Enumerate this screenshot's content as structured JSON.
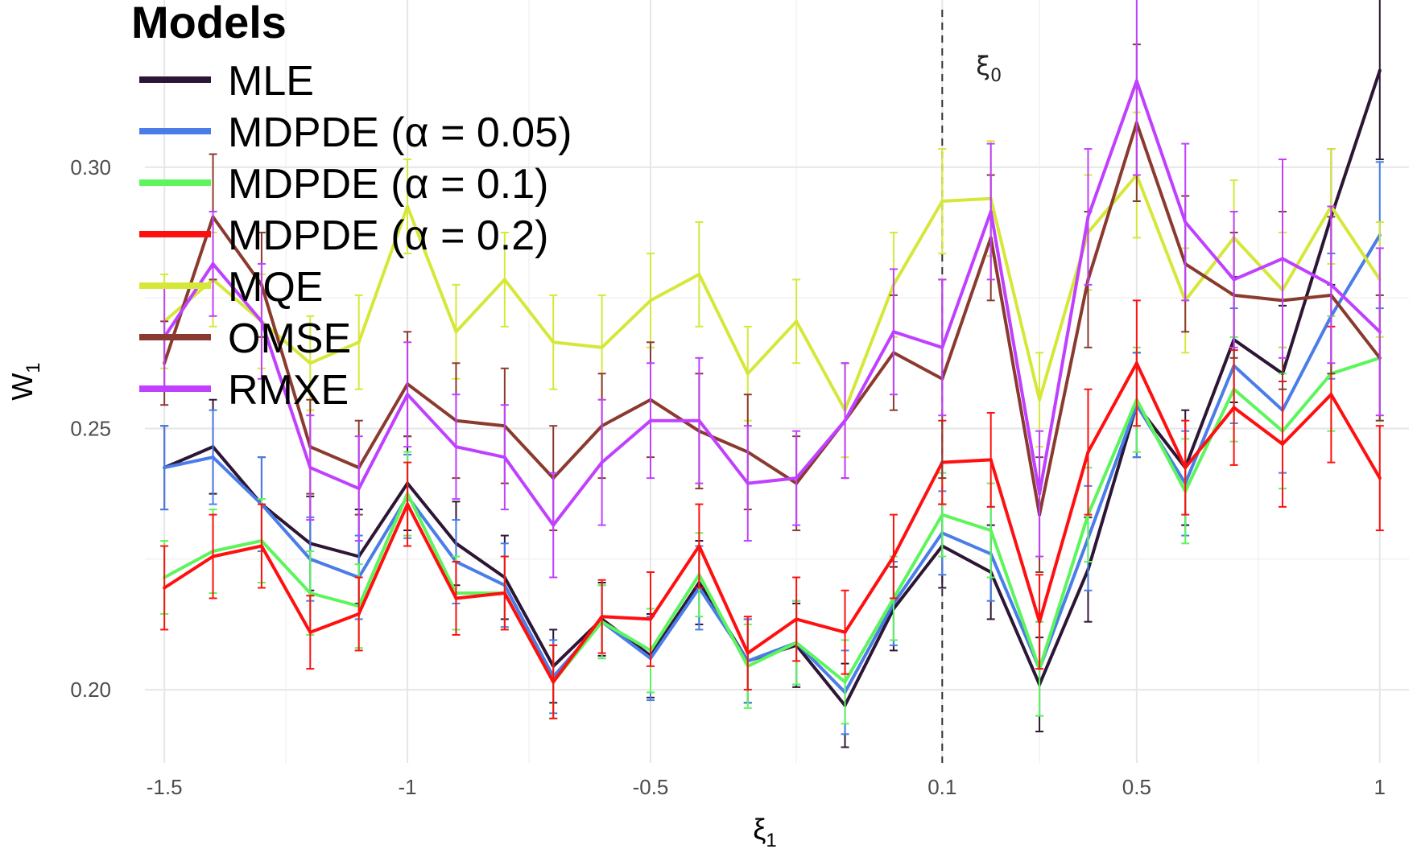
{
  "chart_data": {
    "type": "line",
    "xlabel": "ξ",
    "xlabel_sub": "1",
    "ylabel": "W",
    "ylabel_sub": "1",
    "ylim": [
      0.186,
      0.332
    ],
    "y_ticks": [
      0.2,
      0.25,
      0.3
    ],
    "y_tick_labels": [
      "0.20",
      "0.25",
      "0.30"
    ],
    "x_tick_labels": [
      "-1.5",
      "-1",
      "-0.5",
      "0.1",
      "0.5",
      "1"
    ],
    "x_tick_positions": [
      1,
      6,
      11,
      17,
      21,
      26
    ],
    "x": [
      1,
      2,
      3,
      4,
      5,
      6,
      7,
      8,
      9,
      10,
      11,
      12,
      13,
      14,
      15,
      16,
      17,
      18,
      19,
      20,
      21,
      22,
      23,
      24,
      25,
      26
    ],
    "grid": true,
    "legend": {
      "title": "Models",
      "position": "top-left"
    },
    "annotation": {
      "text": "ξ",
      "sub": "0",
      "vline_x": 17
    },
    "series": [
      {
        "name": "MLE",
        "color": "#2d1635",
        "values": [
          0.2425,
          0.2465,
          0.2355,
          0.228,
          0.2255,
          0.2395,
          0.228,
          0.2215,
          0.2045,
          0.2135,
          0.2065,
          0.2205,
          0.2055,
          0.2085,
          0.197,
          0.2155,
          0.2275,
          0.2225,
          0.201,
          0.223,
          0.2545,
          0.2425,
          0.267,
          0.2605,
          0.2905,
          0.3185
        ],
        "err": [
          0.008,
          0.009,
          0.009,
          0.009,
          0.009,
          0.009,
          0.008,
          0.008,
          0.007,
          0.007,
          0.008,
          0.008,
          0.008,
          0.008,
          0.008,
          0.008,
          0.008,
          0.009,
          0.009,
          0.01,
          0.01,
          0.011,
          0.012,
          0.013,
          0.013,
          0.017
        ]
      },
      {
        "name": "MDPDE (α = 0.05)",
        "color": "#4a7de8",
        "values": [
          0.2425,
          0.2445,
          0.2355,
          0.225,
          0.2215,
          0.237,
          0.2245,
          0.22,
          0.2025,
          0.213,
          0.206,
          0.2195,
          0.2055,
          0.209,
          0.1995,
          0.2165,
          0.23,
          0.226,
          0.204,
          0.229,
          0.2545,
          0.2395,
          0.262,
          0.2535,
          0.2715,
          0.287
        ],
        "err": [
          0.008,
          0.009,
          0.009,
          0.008,
          0.008,
          0.008,
          0.008,
          0.008,
          0.007,
          0.007,
          0.008,
          0.008,
          0.008,
          0.008,
          0.008,
          0.008,
          0.008,
          0.009,
          0.009,
          0.01,
          0.01,
          0.01,
          0.011,
          0.012,
          0.012,
          0.014
        ]
      },
      {
        "name": "MDPDE (α = 0.1)",
        "color": "#5cf55c",
        "values": [
          0.2215,
          0.2265,
          0.2285,
          0.2185,
          0.216,
          0.2375,
          0.2185,
          0.2185,
          0.2015,
          0.213,
          0.2075,
          0.222,
          0.2045,
          0.209,
          0.2015,
          0.2175,
          0.2335,
          0.2305,
          0.204,
          0.2335,
          0.2555,
          0.238,
          0.2575,
          0.2495,
          0.2605,
          0.2635
        ],
        "err": [
          0.007,
          0.008,
          0.008,
          0.008,
          0.008,
          0.008,
          0.007,
          0.007,
          0.007,
          0.007,
          0.008,
          0.008,
          0.008,
          0.008,
          0.008,
          0.008,
          0.008,
          0.009,
          0.009,
          0.009,
          0.01,
          0.01,
          0.01,
          0.011,
          0.011,
          0.012
        ]
      },
      {
        "name": "MDPDE (α = 0.2)",
        "color": "#ff0f0f",
        "values": [
          0.2195,
          0.2255,
          0.2275,
          0.211,
          0.2145,
          0.2355,
          0.2175,
          0.2185,
          0.2015,
          0.214,
          0.2135,
          0.2275,
          0.207,
          0.2135,
          0.211,
          0.2255,
          0.2435,
          0.244,
          0.213,
          0.2455,
          0.2625,
          0.2425,
          0.254,
          0.247,
          0.2565,
          0.2405
        ],
        "err": [
          0.008,
          0.008,
          0.008,
          0.007,
          0.007,
          0.008,
          0.007,
          0.007,
          0.007,
          0.007,
          0.009,
          0.008,
          0.007,
          0.008,
          0.008,
          0.008,
          0.008,
          0.009,
          0.009,
          0.012,
          0.012,
          0.009,
          0.011,
          0.012,
          0.013,
          0.01
        ]
      },
      {
        "name": "MQE",
        "color": "#d5e83a",
        "values": [
          0.2705,
          0.2785,
          0.2705,
          0.2625,
          0.2665,
          0.2925,
          0.2685,
          0.2785,
          0.2665,
          0.2655,
          0.2745,
          0.2795,
          0.2605,
          0.2705,
          0.2535,
          0.2775,
          0.2935,
          0.294,
          0.2555,
          0.2875,
          0.2985,
          0.2745,
          0.2865,
          0.2765,
          0.2925,
          0.2785
        ],
        "err": [
          0.009,
          0.009,
          0.009,
          0.009,
          0.009,
          0.009,
          0.009,
          0.009,
          0.009,
          0.01,
          0.009,
          0.01,
          0.009,
          0.008,
          0.009,
          0.01,
          0.01,
          0.011,
          0.009,
          0.011,
          0.012,
          0.01,
          0.011,
          0.011,
          0.011,
          0.011
        ]
      },
      {
        "name": "OMSE",
        "color": "#8b3a2f",
        "values": [
          0.2625,
          0.2905,
          0.2775,
          0.2465,
          0.2425,
          0.2585,
          0.2515,
          0.2505,
          0.2405,
          0.2505,
          0.2555,
          0.2495,
          0.2455,
          0.2395,
          0.2515,
          0.2645,
          0.2595,
          0.2865,
          0.2335,
          0.2785,
          0.3085,
          0.2815,
          0.2755,
          0.2745,
          0.2755,
          0.2635
        ],
        "err": [
          0.008,
          0.012,
          0.01,
          0.009,
          0.009,
          0.01,
          0.011,
          0.011,
          0.01,
          0.01,
          0.011,
          0.011,
          0.011,
          0.009,
          0.011,
          0.011,
          0.019,
          0.012,
          0.011,
          0.013,
          0.015,
          0.013,
          0.012,
          0.017,
          0.015,
          0.012
        ]
      },
      {
        "name": "RMXE",
        "color": "#bf40ff",
        "values": [
          0.2675,
          0.2815,
          0.2705,
          0.2425,
          0.2385,
          0.2565,
          0.2465,
          0.2445,
          0.2315,
          0.2435,
          0.2515,
          0.2515,
          0.2395,
          0.2405,
          0.2515,
          0.2685,
          0.2655,
          0.2915,
          0.2375,
          0.2905,
          0.3165,
          0.2895,
          0.2785,
          0.2825,
          0.2775,
          0.2685
        ],
        "err": [
          0.01,
          0.01,
          0.011,
          0.01,
          0.01,
          0.01,
          0.01,
          0.01,
          0.01,
          0.012,
          0.011,
          0.012,
          0.011,
          0.009,
          0.011,
          0.012,
          0.013,
          0.013,
          0.012,
          0.013,
          0.018,
          0.015,
          0.013,
          0.019,
          0.015,
          0.016
        ]
      }
    ]
  }
}
